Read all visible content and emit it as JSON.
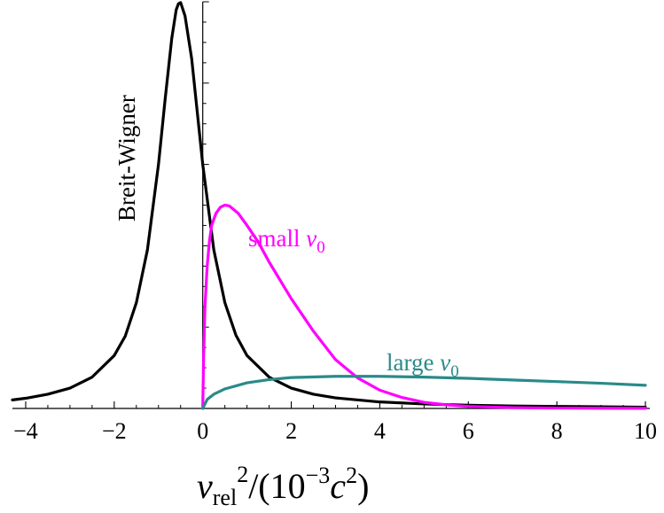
{
  "chart_data": {
    "type": "line",
    "title": "",
    "xlabel": {
      "base": "v",
      "base_sub": "rel",
      "pow": "2",
      "mid": "/(10",
      "exp": "−3",
      "var": "c",
      "var_pow": "2",
      "close": ")"
    },
    "ylabel": "",
    "xlim": [
      -4.3,
      10.1
    ],
    "ylim": [
      0,
      1.0
    ],
    "x_ticks": [
      -4,
      -2,
      0,
      2,
      4,
      6,
      8,
      10
    ],
    "x_tick_labels": [
      "−4",
      "−2",
      "0",
      "2",
      "4",
      "6",
      "8",
      "10"
    ],
    "y_tick_labels": [],
    "grid": false,
    "series": [
      {
        "name": "Breit-Wigner",
        "label_main": "Breit-Wigner",
        "label_sub": "",
        "color": "#000000",
        "x": [
          -4.3,
          -4,
          -3.5,
          -3,
          -2.5,
          -2,
          -1.75,
          -1.5,
          -1.25,
          -1,
          -0.85,
          -0.7,
          -0.6,
          -0.55,
          -0.5,
          -0.4,
          -0.25,
          0,
          0.25,
          0.5,
          0.75,
          1,
          1.5,
          2,
          2.5,
          3,
          4,
          5,
          6,
          7,
          8,
          9,
          10
        ],
        "y": [
          0.021,
          0.025,
          0.035,
          0.05,
          0.077,
          0.13,
          0.178,
          0.26,
          0.39,
          0.6,
          0.76,
          0.91,
          0.98,
          0.995,
          0.998,
          0.965,
          0.86,
          0.6,
          0.39,
          0.26,
          0.18,
          0.13,
          0.077,
          0.05,
          0.035,
          0.026,
          0.016,
          0.011,
          0.008,
          0.006,
          0.005,
          0.004,
          0.003
        ]
      },
      {
        "name": "small v0",
        "label_main": "small ",
        "label_sub": "0",
        "color": "#ff00ff",
        "x": [
          0,
          0.02,
          0.05,
          0.1,
          0.15,
          0.2,
          0.3,
          0.4,
          0.5,
          0.6,
          0.8,
          1,
          1.25,
          1.5,
          2,
          2.5,
          3,
          3.5,
          4,
          4.5,
          5,
          5.5,
          6,
          7,
          8,
          9,
          10
        ],
        "y": [
          0,
          0.13,
          0.25,
          0.35,
          0.41,
          0.45,
          0.48,
          0.495,
          0.5,
          0.498,
          0.48,
          0.45,
          0.41,
          0.36,
          0.27,
          0.19,
          0.12,
          0.075,
          0.045,
          0.027,
          0.015,
          0.009,
          0.005,
          0.002,
          0.001,
          0.0005,
          0.0002
        ]
      },
      {
        "name": "large v0",
        "label_main": "large ",
        "label_sub": "0",
        "color": "#2a8a8a",
        "x": [
          0,
          0.1,
          0.25,
          0.5,
          1,
          1.5,
          2,
          3,
          4,
          5,
          6,
          7,
          8,
          9,
          10
        ],
        "y": [
          0,
          0.022,
          0.035,
          0.048,
          0.063,
          0.071,
          0.076,
          0.079,
          0.079,
          0.077,
          0.074,
          0.07,
          0.066,
          0.062,
          0.057
        ]
      }
    ]
  }
}
